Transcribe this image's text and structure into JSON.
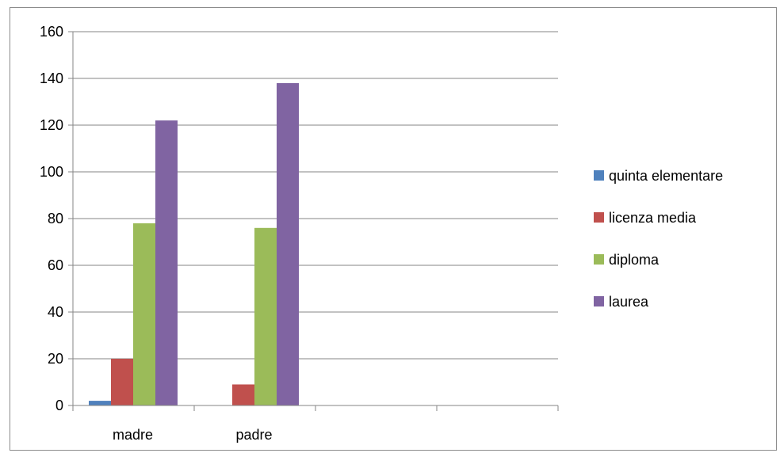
{
  "chart_data": {
    "type": "bar",
    "categories": [
      "madre",
      "padre",
      "",
      ""
    ],
    "series": [
      {
        "name": "quinta elementare",
        "color": "#4f81bd",
        "values": [
          2,
          0,
          null,
          null
        ]
      },
      {
        "name": "licenza media",
        "color": "#c0504d",
        "values": [
          20,
          9,
          null,
          null
        ]
      },
      {
        "name": "diploma",
        "color": "#9bbb59",
        "values": [
          78,
          76,
          null,
          null
        ]
      },
      {
        "name": "laurea",
        "color": "#8064a2",
        "values": [
          122,
          138,
          null,
          null
        ]
      }
    ],
    "ylim": [
      0,
      160
    ],
    "yticks": [
      0,
      20,
      40,
      60,
      80,
      100,
      120,
      140,
      160
    ],
    "grid": true,
    "legend_position": "right",
    "axis_color": "#868686",
    "grid_color": "#868686"
  }
}
